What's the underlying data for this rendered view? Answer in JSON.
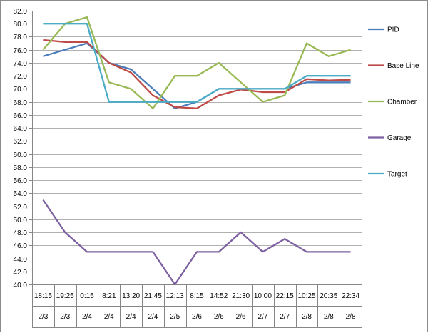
{
  "chart_data": {
    "type": "line",
    "title": "",
    "xlabel": "",
    "ylabel": "",
    "ylim": [
      40.0,
      82.0
    ],
    "ytick_step": 2.0,
    "ytick_decimals": 1,
    "grid": "horizontal",
    "legend_position": "right",
    "categories": [
      {
        "time": "18:15",
        "date": "2/3"
      },
      {
        "time": "19:25",
        "date": "2/3"
      },
      {
        "time": "0:15",
        "date": "2/4"
      },
      {
        "time": "8:21",
        "date": "2/4"
      },
      {
        "time": "13:20",
        "date": "2/4"
      },
      {
        "time": "21:45",
        "date": "2/4"
      },
      {
        "time": "12:13",
        "date": "2/5"
      },
      {
        "time": "8:15",
        "date": "2/6"
      },
      {
        "time": "14:52",
        "date": "2/6"
      },
      {
        "time": "21:30",
        "date": "2/6"
      },
      {
        "time": "10:00",
        "date": "2/7"
      },
      {
        "time": "22:15",
        "date": "2/7"
      },
      {
        "time": "10:25",
        "date": "2/8"
      },
      {
        "time": "20:35",
        "date": "2/8"
      },
      {
        "time": "22:34",
        "date": "2/8"
      }
    ],
    "series": [
      {
        "name": "PID",
        "color": "#4a7ebb",
        "values": [
          75.0,
          76.0,
          77.0,
          74.0,
          73.0,
          70.0,
          67.0,
          68.0,
          70.0,
          70.0,
          70.0,
          70.0,
          71.0,
          71.0,
          71.0
        ]
      },
      {
        "name": "Base Line",
        "color": "#be4b48",
        "values": [
          77.5,
          77.2,
          77.2,
          74.0,
          72.5,
          69.0,
          67.2,
          67.0,
          69.0,
          69.9,
          69.5,
          69.5,
          71.5,
          71.3,
          71.4
        ]
      },
      {
        "name": "Chamber",
        "color": "#98b954",
        "values": [
          76.0,
          80.0,
          81.0,
          71.0,
          70.0,
          67.0,
          72.0,
          72.0,
          74.0,
          71.0,
          68.0,
          69.0,
          77.0,
          75.0,
          76.0
        ]
      },
      {
        "name": "Garage",
        "color": "#7d60a0",
        "values": [
          53.0,
          48.0,
          45.0,
          45.0,
          45.0,
          45.0,
          40.0,
          45.0,
          45.0,
          48.0,
          45.0,
          47.0,
          45.0,
          45.0,
          45.0
        ]
      },
      {
        "name": "Target",
        "color": "#4bacc6",
        "values": [
          80.0,
          80.0,
          80.0,
          68.0,
          68.0,
          68.0,
          68.0,
          68.0,
          70.0,
          70.0,
          70.0,
          70.0,
          72.0,
          72.0,
          72.0
        ]
      }
    ],
    "colors": {
      "axis": "#868686",
      "gridline": "#b0b0b0",
      "frame": "#8c8c8c"
    }
  }
}
